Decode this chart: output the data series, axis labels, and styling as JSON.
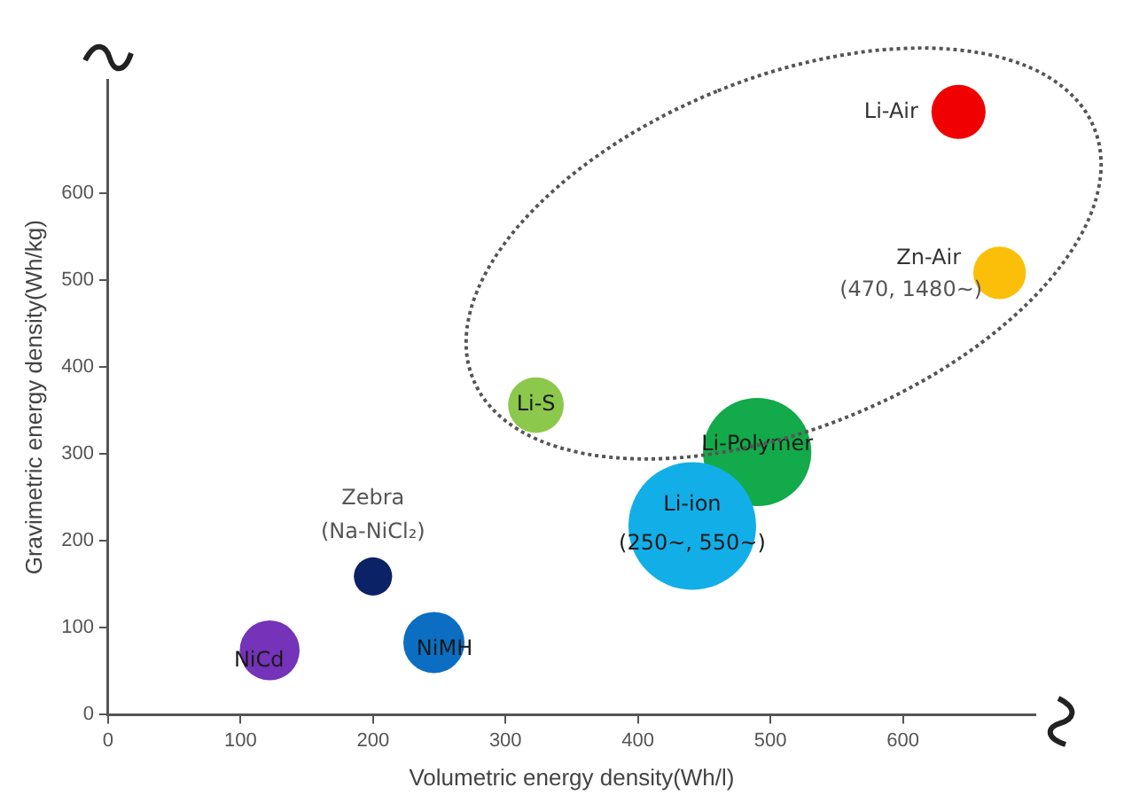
{
  "chart_data": {
    "type": "bubble",
    "xlabel": "Volumetric energy density(Wh/l)",
    "ylabel": "Gravimetric energy density(Wh/kg)",
    "xlim": [
      0,
      700
    ],
    "ylim": [
      0,
      730
    ],
    "xticks": [
      0,
      100,
      200,
      300,
      400,
      500,
      600
    ],
    "yticks": [
      0,
      100,
      200,
      300,
      400,
      500,
      600
    ],
    "grid": false,
    "legend": false,
    "series": [
      {
        "name": "Li-Air",
        "color": "#f00000",
        "x": [
          642
        ],
        "values": [
          693
        ],
        "sizes": [
          0.18
        ]
      },
      {
        "name": "Zn-Air",
        "color": "#fbbf0a",
        "x": [
          673
        ],
        "values": [
          508
        ],
        "sizes": [
          0.17
        ]
      },
      {
        "name": "Li-S",
        "color": "#8cc84b",
        "x": [
          323
        ],
        "values": [
          356
        ],
        "sizes": [
          0.19
        ]
      },
      {
        "name": "Li-Polymer",
        "color": "#12aa4a",
        "x": [
          490
        ],
        "values": [
          302
        ],
        "sizes": [
          0.72
        ]
      },
      {
        "name": "Li-ion",
        "color": "#12aee8",
        "x": [
          441
        ],
        "values": [
          217
        ],
        "sizes": [
          1
        ]
      },
      {
        "name": "Zebra",
        "color": "#0c2266",
        "x": [
          200
        ],
        "values": [
          159
        ],
        "sizes": [
          0.09
        ]
      },
      {
        "name": "NiCd",
        "color": "#7433b8",
        "x": [
          122
        ],
        "values": [
          74
        ],
        "sizes": [
          0.22
        ]
      },
      {
        "name": "NiMH",
        "color": "#0b6ec2",
        "x": [
          246
        ],
        "values": [
          83
        ],
        "sizes": [
          0.23
        ]
      }
    ],
    "annotations": [
      {
        "text": "(470, 1480~)",
        "x": 673,
        "y": 508
      },
      {
        "text": "(250~, 550~)",
        "x": 441,
        "y": 217
      },
      {
        "text": "(Na-NiCl₂)",
        "x": 200,
        "y": 159
      }
    ]
  }
}
